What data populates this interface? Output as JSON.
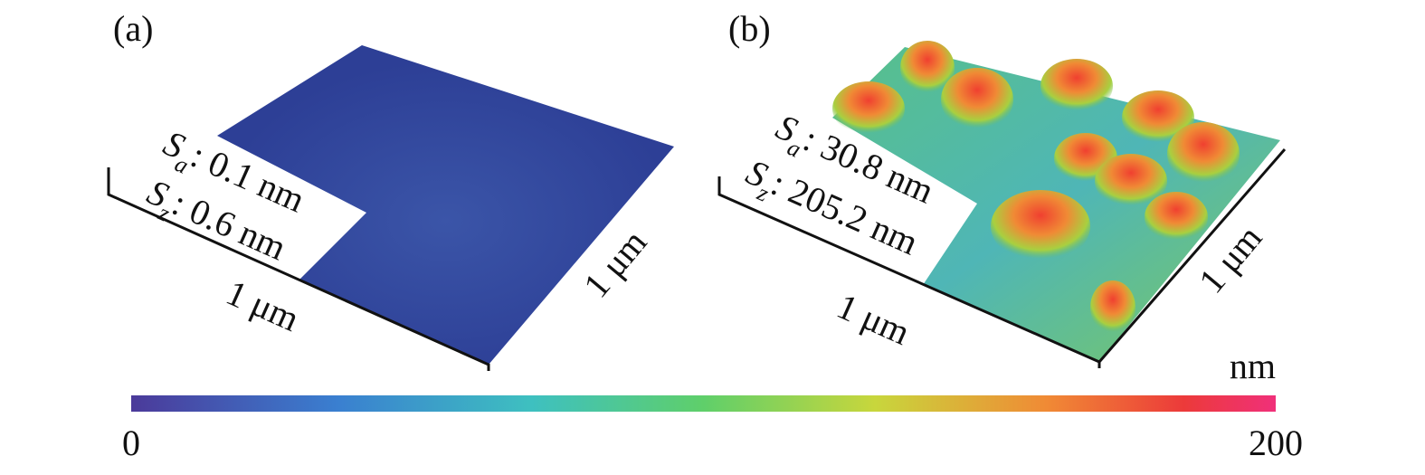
{
  "panels": [
    {
      "label": "(a)",
      "roughness": [
        {
          "symbol": "S",
          "subscript": "a",
          "value": ": 0.1 nm"
        },
        {
          "symbol": "S",
          "subscript": "z",
          "value": ": 0.6 nm"
        }
      ],
      "x_size": "1 μm",
      "y_size": "1 μm"
    },
    {
      "label": "(b)",
      "roughness": [
        {
          "symbol": "S",
          "subscript": "a",
          "value": ": 30.8 nm"
        },
        {
          "symbol": "S",
          "subscript": "z",
          "value": ": 205.2 nm"
        }
      ],
      "x_size": "1 μm",
      "y_size": "1 μm"
    }
  ],
  "colorbar": {
    "unit": "nm",
    "min": 0,
    "max": 200
  }
}
